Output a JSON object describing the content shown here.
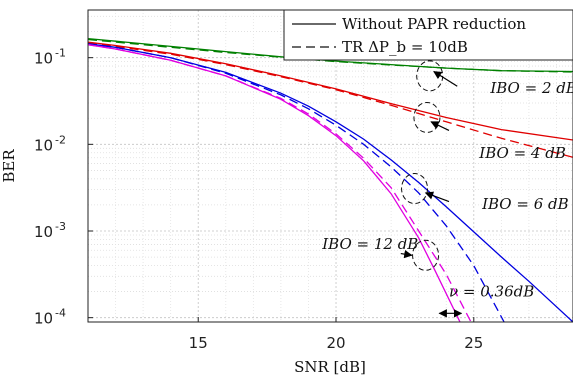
{
  "chart_data": {
    "type": "line",
    "title": "",
    "xlabel": "SNR [dB]",
    "ylabel": "BER",
    "xlim": [
      11,
      28.6
    ],
    "ylim_log10": [
      -4.05,
      -0.45
    ],
    "yscale": "log",
    "grid": true,
    "legend_placement": "top-right",
    "x_ticks": [
      {
        "value": 15,
        "label": "15"
      },
      {
        "value": 20,
        "label": "20"
      },
      {
        "value": 25,
        "label": "25"
      }
    ],
    "y_ticks": [
      {
        "value": -1,
        "base": "10",
        "exp": "-1"
      },
      {
        "value": -2,
        "base": "10",
        "exp": "-2"
      },
      {
        "value": -3,
        "base": "10",
        "exp": "-3"
      },
      {
        "value": -4,
        "base": "10",
        "exp": "-4"
      }
    ],
    "legend": [
      {
        "label": "Without PAPR reduction",
        "style": "solid"
      },
      {
        "label": "TR ΔP_b = 10dB",
        "style": "dashed"
      }
    ],
    "series": [
      {
        "group": "IBO = 2 dB",
        "style": "solid",
        "color": "#008000",
        "x": [
          11,
          12,
          14,
          16,
          18,
          20,
          22,
          24,
          26,
          28.6
        ],
        "log10_y": [
          -0.78,
          -0.81,
          -0.87,
          -0.93,
          -0.99,
          -1.04,
          -1.08,
          -1.12,
          -1.15,
          -1.16
        ]
      },
      {
        "group": "IBO = 2 dB",
        "style": "dashed",
        "color": "#008000",
        "x": [
          11,
          12,
          14,
          16,
          18,
          20,
          22,
          24,
          26,
          28.6
        ],
        "log10_y": [
          -0.79,
          -0.82,
          -0.88,
          -0.94,
          -0.995,
          -1.045,
          -1.085,
          -1.12,
          -1.15,
          -1.165
        ]
      },
      {
        "group": "IBO = 4 dB",
        "style": "solid",
        "color": "#e00000",
        "x": [
          11,
          12,
          14,
          16,
          18,
          20,
          22,
          24,
          26,
          28.6
        ],
        "log10_y": [
          -0.82,
          -0.86,
          -0.95,
          -1.07,
          -1.21,
          -1.36,
          -1.53,
          -1.69,
          -1.83,
          -1.95
        ]
      },
      {
        "group": "IBO = 4 dB",
        "style": "dashed",
        "color": "#e00000",
        "x": [
          11,
          12,
          14,
          16,
          18,
          20,
          22,
          24,
          26,
          28.6
        ],
        "log10_y": [
          -0.83,
          -0.87,
          -0.96,
          -1.08,
          -1.22,
          -1.37,
          -1.55,
          -1.74,
          -1.93,
          -2.15
        ]
      },
      {
        "group": "IBO = 6 dB",
        "style": "solid",
        "color": "#0000e0",
        "x": [
          11,
          12,
          14,
          16,
          18,
          19,
          20,
          21,
          22,
          23,
          24,
          25,
          26,
          27,
          28.6
        ],
        "log10_y": [
          -0.84,
          -0.88,
          -1.0,
          -1.17,
          -1.41,
          -1.56,
          -1.74,
          -1.94,
          -2.18,
          -2.44,
          -2.72,
          -3.01,
          -3.3,
          -3.58,
          -4.05
        ]
      },
      {
        "group": "IBO = 6 dB",
        "style": "dashed",
        "color": "#0000e0",
        "x": [
          11,
          12,
          14,
          16,
          18,
          19,
          20,
          21,
          22,
          23,
          24,
          25,
          26.1
        ],
        "log10_y": [
          -0.84,
          -0.88,
          -1.0,
          -1.18,
          -1.43,
          -1.59,
          -1.78,
          -2.0,
          -2.26,
          -2.56,
          -2.94,
          -3.4,
          -4.05
        ]
      },
      {
        "group": "IBO = 12 dB",
        "style": "solid",
        "color": "#e000e0",
        "x": [
          11,
          12,
          14,
          16,
          18,
          19,
          20,
          21,
          22,
          23,
          23.6,
          24.5
        ],
        "log10_y": [
          -0.85,
          -0.9,
          -1.03,
          -1.21,
          -1.48,
          -1.67,
          -1.9,
          -2.19,
          -2.57,
          -3.08,
          -3.46,
          -4.05
        ]
      },
      {
        "group": "IBO = 12 dB",
        "style": "dashed",
        "color": "#e000e0",
        "x": [
          11,
          12,
          14,
          16,
          18,
          19,
          20,
          21,
          22,
          23,
          24,
          24.9
        ],
        "log10_y": [
          -0.85,
          -0.9,
          -1.03,
          -1.21,
          -1.47,
          -1.65,
          -1.88,
          -2.16,
          -2.5,
          -3.0,
          -3.5,
          -4.05
        ]
      }
    ],
    "annotations": [
      {
        "text": "IBO = 2 dB",
        "x": 25.6,
        "log10_y": -1.35,
        "circle_x": 23.4,
        "circle_log10_y": -1.21,
        "arrow_from_x": 24.4,
        "arrow_from_log10_y": -1.33,
        "arrow_to_x": 23.55,
        "arrow_to_log10_y": -1.16
      },
      {
        "text": "IBO = 4 dB",
        "x": 25.2,
        "log10_y": -2.1,
        "circle_x": 23.3,
        "circle_log10_y": -1.69,
        "arrow_from_x": 24.1,
        "arrow_from_log10_y": -1.84,
        "arrow_to_x": 23.45,
        "arrow_to_log10_y": -1.74
      },
      {
        "text": "IBO = 6 dB",
        "x": 25.3,
        "log10_y": -2.69,
        "circle_x": 22.85,
        "circle_log10_y": -2.51,
        "arrow_from_x": 24.1,
        "arrow_from_log10_y": -2.66,
        "arrow_to_x": 23.25,
        "arrow_to_log10_y": -2.56
      },
      {
        "text": "IBO = 12 dB",
        "x": 19.5,
        "log10_y": -3.15,
        "circle_x": 23.25,
        "circle_log10_y": -3.28,
        "arrow_from_x": 22.35,
        "arrow_from_log10_y": -3.26,
        "arrow_to_x": 22.75,
        "arrow_to_log10_y": -3.28
      },
      {
        "text": "ν = 0.36dB",
        "x": 24.1,
        "log10_y": -3.7,
        "arrow_from_x": 23.75,
        "arrow_from_log10_y": -3.95,
        "arrow_to_x": 24.55,
        "arrow_to_log10_y": -3.95
      }
    ]
  }
}
